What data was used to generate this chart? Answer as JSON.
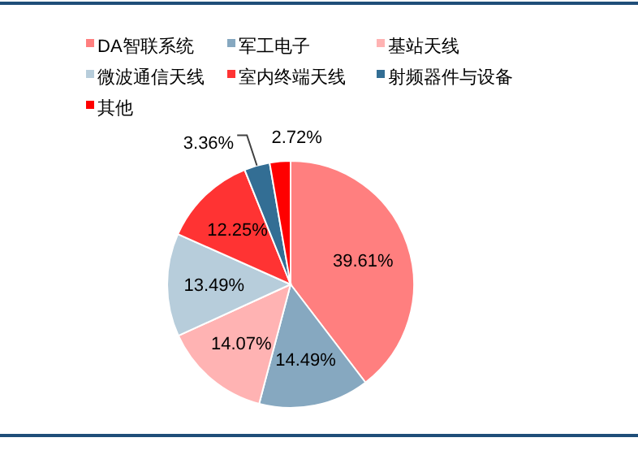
{
  "chart_data": {
    "type": "pie",
    "categories": [
      "DA智联系统",
      "军工电子",
      "基站天线",
      "微波通信天线",
      "室内终端天线",
      "射频器件与设备",
      "其他"
    ],
    "values": [
      39.61,
      14.49,
      14.07,
      13.49,
      12.25,
      3.36,
      2.72
    ],
    "colors": [
      "#ff7f7f",
      "#86a8c0",
      "#ffb3b3",
      "#b7cddb",
      "#ff3333",
      "#336e94",
      "#ff0000"
    ],
    "value_labels": [
      "39.61%",
      "14.49%",
      "14.07%",
      "13.49%",
      "12.25%",
      "3.36%",
      "2.72%"
    ],
    "legend": "top"
  }
}
